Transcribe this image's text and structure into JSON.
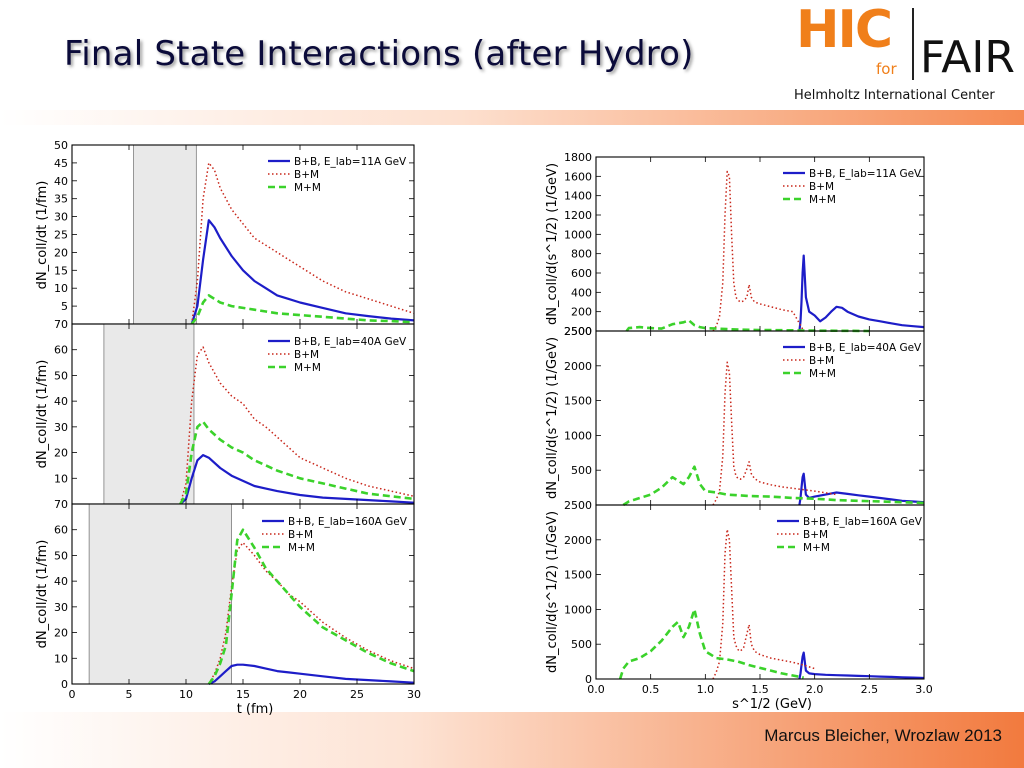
{
  "slide": {
    "title": "Final State Interactions (after Hydro)",
    "logo_hic": "HIC",
    "logo_for": "for",
    "logo_fair": "FAIR",
    "logo_subtitle": "Helmholtz International Center",
    "footer": "Marcus Bleicher, Wrozlaw 2013"
  },
  "colors": {
    "title": "#0b0b3a",
    "accent_orange": "#f07f1a",
    "series_bb": "#1d1dc8",
    "series_bm": "#c8261a",
    "series_mm": "#3bd22b",
    "shade": "#e9e9e9"
  },
  "chart_data": [
    {
      "type": "line",
      "panel": "left-top",
      "ylabel": "dN_coll/dt (1/fm)",
      "xlim": [
        0,
        30
      ],
      "ylim": [
        0,
        50
      ],
      "yticks": [
        5,
        10,
        15,
        20,
        25,
        30,
        35,
        40,
        45,
        50
      ],
      "shaded_band": [
        5.4,
        10.9
      ],
      "legend": [
        "B+B, E_lab=11A GeV",
        "B+M",
        "M+M"
      ],
      "series": [
        {
          "name": "B+B, E_lab=11A GeV",
          "x": [
            10.5,
            11,
            11.5,
            12,
            12.5,
            13,
            14,
            15,
            16,
            17,
            18,
            19,
            20,
            22,
            24,
            26,
            28,
            30
          ],
          "values": [
            0,
            5,
            18,
            29,
            27,
            24,
            19,
            15,
            12,
            10,
            8,
            7,
            6,
            4.5,
            3,
            2.2,
            1.5,
            1
          ]
        },
        {
          "name": "B+M",
          "x": [
            10.5,
            11,
            11.5,
            12,
            12.5,
            13,
            14,
            15,
            16,
            17,
            18,
            19,
            20,
            22,
            24,
            26,
            28,
            30
          ],
          "values": [
            0,
            12,
            35,
            45,
            43,
            38,
            32,
            28,
            24,
            22,
            20,
            18,
            16,
            12,
            9,
            7,
            5,
            3
          ]
        },
        {
          "name": "M+M",
          "x": [
            10.5,
            11,
            11.5,
            12,
            12.5,
            13,
            14,
            15,
            16,
            17,
            18,
            20,
            22,
            24,
            26,
            28,
            30
          ],
          "values": [
            0,
            2,
            6,
            8,
            7,
            6,
            5,
            4.5,
            4,
            3.5,
            3,
            2.5,
            2,
            1.5,
            1,
            0.8,
            0.5
          ]
        }
      ]
    },
    {
      "type": "line",
      "panel": "left-middle",
      "ylabel": "dN_coll/dt (1/fm)",
      "xlim": [
        0,
        30
      ],
      "ylim": [
        0,
        70
      ],
      "yticks": [
        10,
        20,
        30,
        40,
        50,
        60,
        70
      ],
      "shaded_band": [
        2.8,
        10.7
      ],
      "legend": [
        "B+B, E_lab=40A GeV",
        "B+M",
        "M+M"
      ],
      "series": [
        {
          "name": "B+B, E_lab=40A GeV",
          "x": [
            9.5,
            10,
            10.5,
            11,
            11.5,
            12,
            13,
            14,
            15,
            16,
            17,
            18,
            20,
            22,
            24,
            26,
            28,
            30
          ],
          "values": [
            0,
            2,
            10,
            17,
            19,
            18,
            14,
            11,
            9,
            7,
            6,
            5,
            3.5,
            2.5,
            2,
            1.5,
            1,
            0.5
          ]
        },
        {
          "name": "B+M",
          "x": [
            9.5,
            10,
            10.5,
            11,
            11.5,
            12,
            13,
            14,
            15,
            16,
            17,
            18,
            20,
            22,
            24,
            26,
            28,
            30
          ],
          "values": [
            0,
            8,
            40,
            58,
            61,
            55,
            47,
            42,
            39,
            33,
            30,
            26,
            18,
            14,
            10,
            7,
            5,
            3
          ]
        },
        {
          "name": "M+M",
          "x": [
            9.5,
            10,
            10.5,
            11,
            11.5,
            12,
            13,
            14,
            15,
            16,
            17,
            18,
            20,
            22,
            24,
            26,
            28,
            30
          ],
          "values": [
            0,
            4,
            20,
            30,
            32,
            29,
            25,
            22,
            20,
            17,
            15,
            13,
            10,
            8,
            6,
            4,
            3,
            2
          ]
        }
      ]
    },
    {
      "type": "line",
      "panel": "left-bottom",
      "ylabel": "dN_coll/dt (1/fm)",
      "xlabel": "t (fm)",
      "xlim": [
        0,
        30
      ],
      "xticks": [
        0,
        5,
        10,
        15,
        20,
        25,
        30
      ],
      "ylim": [
        0,
        70
      ],
      "yticks": [
        0,
        10,
        20,
        30,
        40,
        50,
        60,
        70
      ],
      "shaded_band": [
        1.5,
        14
      ],
      "legend": [
        "B+B, E_lab=160A GeV",
        "B+M",
        "M+M"
      ],
      "series": [
        {
          "name": "B+B, E_lab=160A GeV",
          "x": [
            12,
            12.5,
            13,
            13.5,
            14,
            14.5,
            15,
            16,
            17,
            18,
            19,
            20,
            22,
            24,
            26,
            28,
            30
          ],
          "values": [
            0,
            1,
            3,
            5,
            7,
            7.5,
            7.5,
            7,
            6,
            5,
            4.5,
            4,
            3,
            2,
            1.5,
            1,
            0.5
          ]
        },
        {
          "name": "B+M",
          "x": [
            12,
            12.5,
            13,
            13.5,
            14,
            14.5,
            15,
            16,
            17,
            18,
            19,
            20,
            22,
            24,
            26,
            28,
            30
          ],
          "values": [
            0,
            4,
            10,
            20,
            38,
            52,
            55,
            50,
            44,
            40,
            35,
            32,
            24,
            18,
            13,
            9,
            6
          ]
        },
        {
          "name": "M+M",
          "x": [
            12,
            12.5,
            13,
            13.5,
            14,
            14.5,
            15,
            16,
            17,
            18,
            19,
            20,
            22,
            24,
            26,
            28,
            30
          ],
          "values": [
            0,
            3,
            8,
            15,
            35,
            56,
            60,
            53,
            45,
            40,
            35,
            30,
            22,
            17,
            12,
            8,
            5
          ]
        }
      ]
    },
    {
      "type": "line",
      "panel": "right-top",
      "ylabel": "dN_coll/d(s^1/2) (1/GeV)",
      "xlim": [
        0,
        3
      ],
      "ylim": [
        0,
        1800
      ],
      "yticks": [
        200,
        400,
        600,
        800,
        1000,
        1200,
        1400,
        1600,
        1800
      ],
      "bottom_tick_label": "2500",
      "legend": [
        "B+B, E_lab=11A GeV",
        "B+M",
        "M+M"
      ],
      "series": [
        {
          "name": "B+B, E_lab=11A GeV",
          "x": [
            1.86,
            1.87,
            1.88,
            1.89,
            1.9,
            1.92,
            1.95,
            2.0,
            2.05,
            2.1,
            2.15,
            2.2,
            2.25,
            2.3,
            2.4,
            2.5,
            2.6,
            2.7,
            2.8,
            2.9,
            3.0
          ],
          "values": [
            0,
            100,
            300,
            600,
            780,
            350,
            200,
            160,
            100,
            140,
            200,
            250,
            240,
            200,
            150,
            120,
            100,
            80,
            60,
            50,
            40
          ]
        },
        {
          "name": "B+M",
          "x": [
            1.07,
            1.1,
            1.13,
            1.16,
            1.18,
            1.2,
            1.22,
            1.24,
            1.26,
            1.28,
            1.3,
            1.32,
            1.35,
            1.38,
            1.4,
            1.42,
            1.45,
            1.5,
            1.6,
            1.7,
            1.8,
            1.9
          ],
          "values": [
            0,
            50,
            150,
            500,
            1200,
            1650,
            1600,
            1000,
            500,
            350,
            320,
            300,
            310,
            350,
            480,
            350,
            300,
            280,
            250,
            220,
            200,
            0
          ]
        },
        {
          "name": "M+M",
          "x": [
            0.28,
            0.3,
            0.4,
            0.5,
            0.6,
            0.7,
            0.8,
            0.85,
            0.9,
            0.95,
            1.0,
            1.1,
            1.2,
            1.3,
            1.5,
            1.7,
            1.9,
            2.1,
            2.3,
            2.5
          ],
          "values": [
            0,
            30,
            40,
            30,
            25,
            70,
            90,
            110,
            60,
            40,
            30,
            25,
            20,
            15,
            10,
            8,
            5,
            3,
            2,
            0
          ]
        }
      ]
    },
    {
      "type": "line",
      "panel": "right-middle",
      "ylabel": "dN_coll/d(s^1/2) (1/GeV)",
      "xlim": [
        0,
        3
      ],
      "ylim": [
        0,
        2500
      ],
      "yticks": [
        500,
        1000,
        1500,
        2000,
        2500
      ],
      "legend": [
        "B+B, E_lab=40A GeV",
        "B+M",
        "M+M"
      ],
      "series": [
        {
          "name": "B+B, E_lab=40A GeV",
          "x": [
            1.86,
            1.87,
            1.88,
            1.89,
            1.9,
            1.92,
            1.95,
            2.0,
            2.1,
            2.2,
            2.3,
            2.4,
            2.5,
            2.6,
            2.7,
            2.8,
            2.9,
            3.0
          ],
          "values": [
            0,
            100,
            250,
            400,
            450,
            150,
            100,
            120,
            150,
            180,
            160,
            140,
            120,
            100,
            80,
            60,
            50,
            40
          ]
        },
        {
          "name": "B+M",
          "x": [
            1.07,
            1.1,
            1.13,
            1.16,
            1.18,
            1.2,
            1.22,
            1.24,
            1.26,
            1.28,
            1.3,
            1.32,
            1.35,
            1.38,
            1.4,
            1.42,
            1.45,
            1.5,
            1.6,
            1.7,
            1.8,
            1.9,
            2.0,
            2.2
          ],
          "values": [
            0,
            80,
            200,
            700,
            1600,
            2050,
            1900,
            1200,
            550,
            420,
            380,
            370,
            400,
            520,
            620,
            450,
            380,
            330,
            290,
            260,
            240,
            220,
            200,
            150
          ]
        },
        {
          "name": "M+M",
          "x": [
            0.25,
            0.3,
            0.4,
            0.5,
            0.6,
            0.7,
            0.75,
            0.8,
            0.85,
            0.9,
            0.95,
            1.0,
            1.1,
            1.2,
            1.3,
            1.4,
            1.6,
            1.8,
            2.0,
            2.2,
            2.4,
            2.6,
            2.8,
            3.0
          ],
          "values": [
            0,
            50,
            100,
            150,
            250,
            400,
            350,
            300,
            400,
            550,
            300,
            200,
            180,
            150,
            140,
            130,
            120,
            100,
            90,
            70,
            60,
            50,
            40,
            30
          ]
        }
      ]
    },
    {
      "type": "line",
      "panel": "right-bottom",
      "ylabel": "dN_coll/d(s^1/2) (1/GeV)",
      "xlabel": "s^1/2 (GeV)",
      "xlim": [
        0,
        3
      ],
      "xticks": [
        0,
        0.5,
        1,
        1.5,
        2,
        2.5,
        3
      ],
      "xticklabels": [
        "0.0",
        "0.5",
        "1.0",
        "1.5",
        "2.0",
        "2.5",
        "3.0"
      ],
      "ylim": [
        0,
        2500
      ],
      "yticks": [
        0,
        500,
        1000,
        1500,
        2000,
        2500
      ],
      "legend": [
        "B+B, E_lab=160A GeV",
        "B+M",
        "M+M"
      ],
      "series": [
        {
          "name": "B+B, E_lab=160A GeV",
          "x": [
            1.86,
            1.87,
            1.88,
            1.89,
            1.9,
            1.92,
            1.95,
            2.0,
            2.1,
            2.2,
            2.3,
            2.4,
            2.5,
            2.6,
            2.7,
            2.8,
            2.9,
            3.0
          ],
          "values": [
            0,
            80,
            200,
            320,
            380,
            120,
            80,
            70,
            60,
            55,
            50,
            45,
            40,
            35,
            30,
            25,
            20,
            15
          ]
        },
        {
          "name": "B+M",
          "x": [
            1.07,
            1.1,
            1.13,
            1.16,
            1.18,
            1.2,
            1.22,
            1.24,
            1.26,
            1.28,
            1.3,
            1.32,
            1.35,
            1.38,
            1.4,
            1.42,
            1.45,
            1.5,
            1.6,
            1.7,
            1.8,
            1.9,
            2.0
          ],
          "values": [
            0,
            100,
            250,
            800,
            1800,
            2150,
            2000,
            1300,
            600,
            480,
            420,
            400,
            450,
            650,
            780,
            500,
            400,
            350,
            300,
            270,
            240,
            200,
            150
          ]
        },
        {
          "name": "M+M",
          "x": [
            0.22,
            0.25,
            0.3,
            0.4,
            0.5,
            0.6,
            0.7,
            0.75,
            0.8,
            0.85,
            0.9,
            0.95,
            1.0,
            1.05,
            1.1,
            1.2,
            1.3,
            1.4,
            1.5,
            1.6,
            1.7,
            1.8,
            1.9
          ],
          "values": [
            0,
            150,
            250,
            300,
            400,
            550,
            750,
            820,
            600,
            750,
            1000,
            650,
            400,
            350,
            300,
            280,
            250,
            200,
            160,
            120,
            80,
            50,
            20
          ]
        }
      ]
    }
  ]
}
